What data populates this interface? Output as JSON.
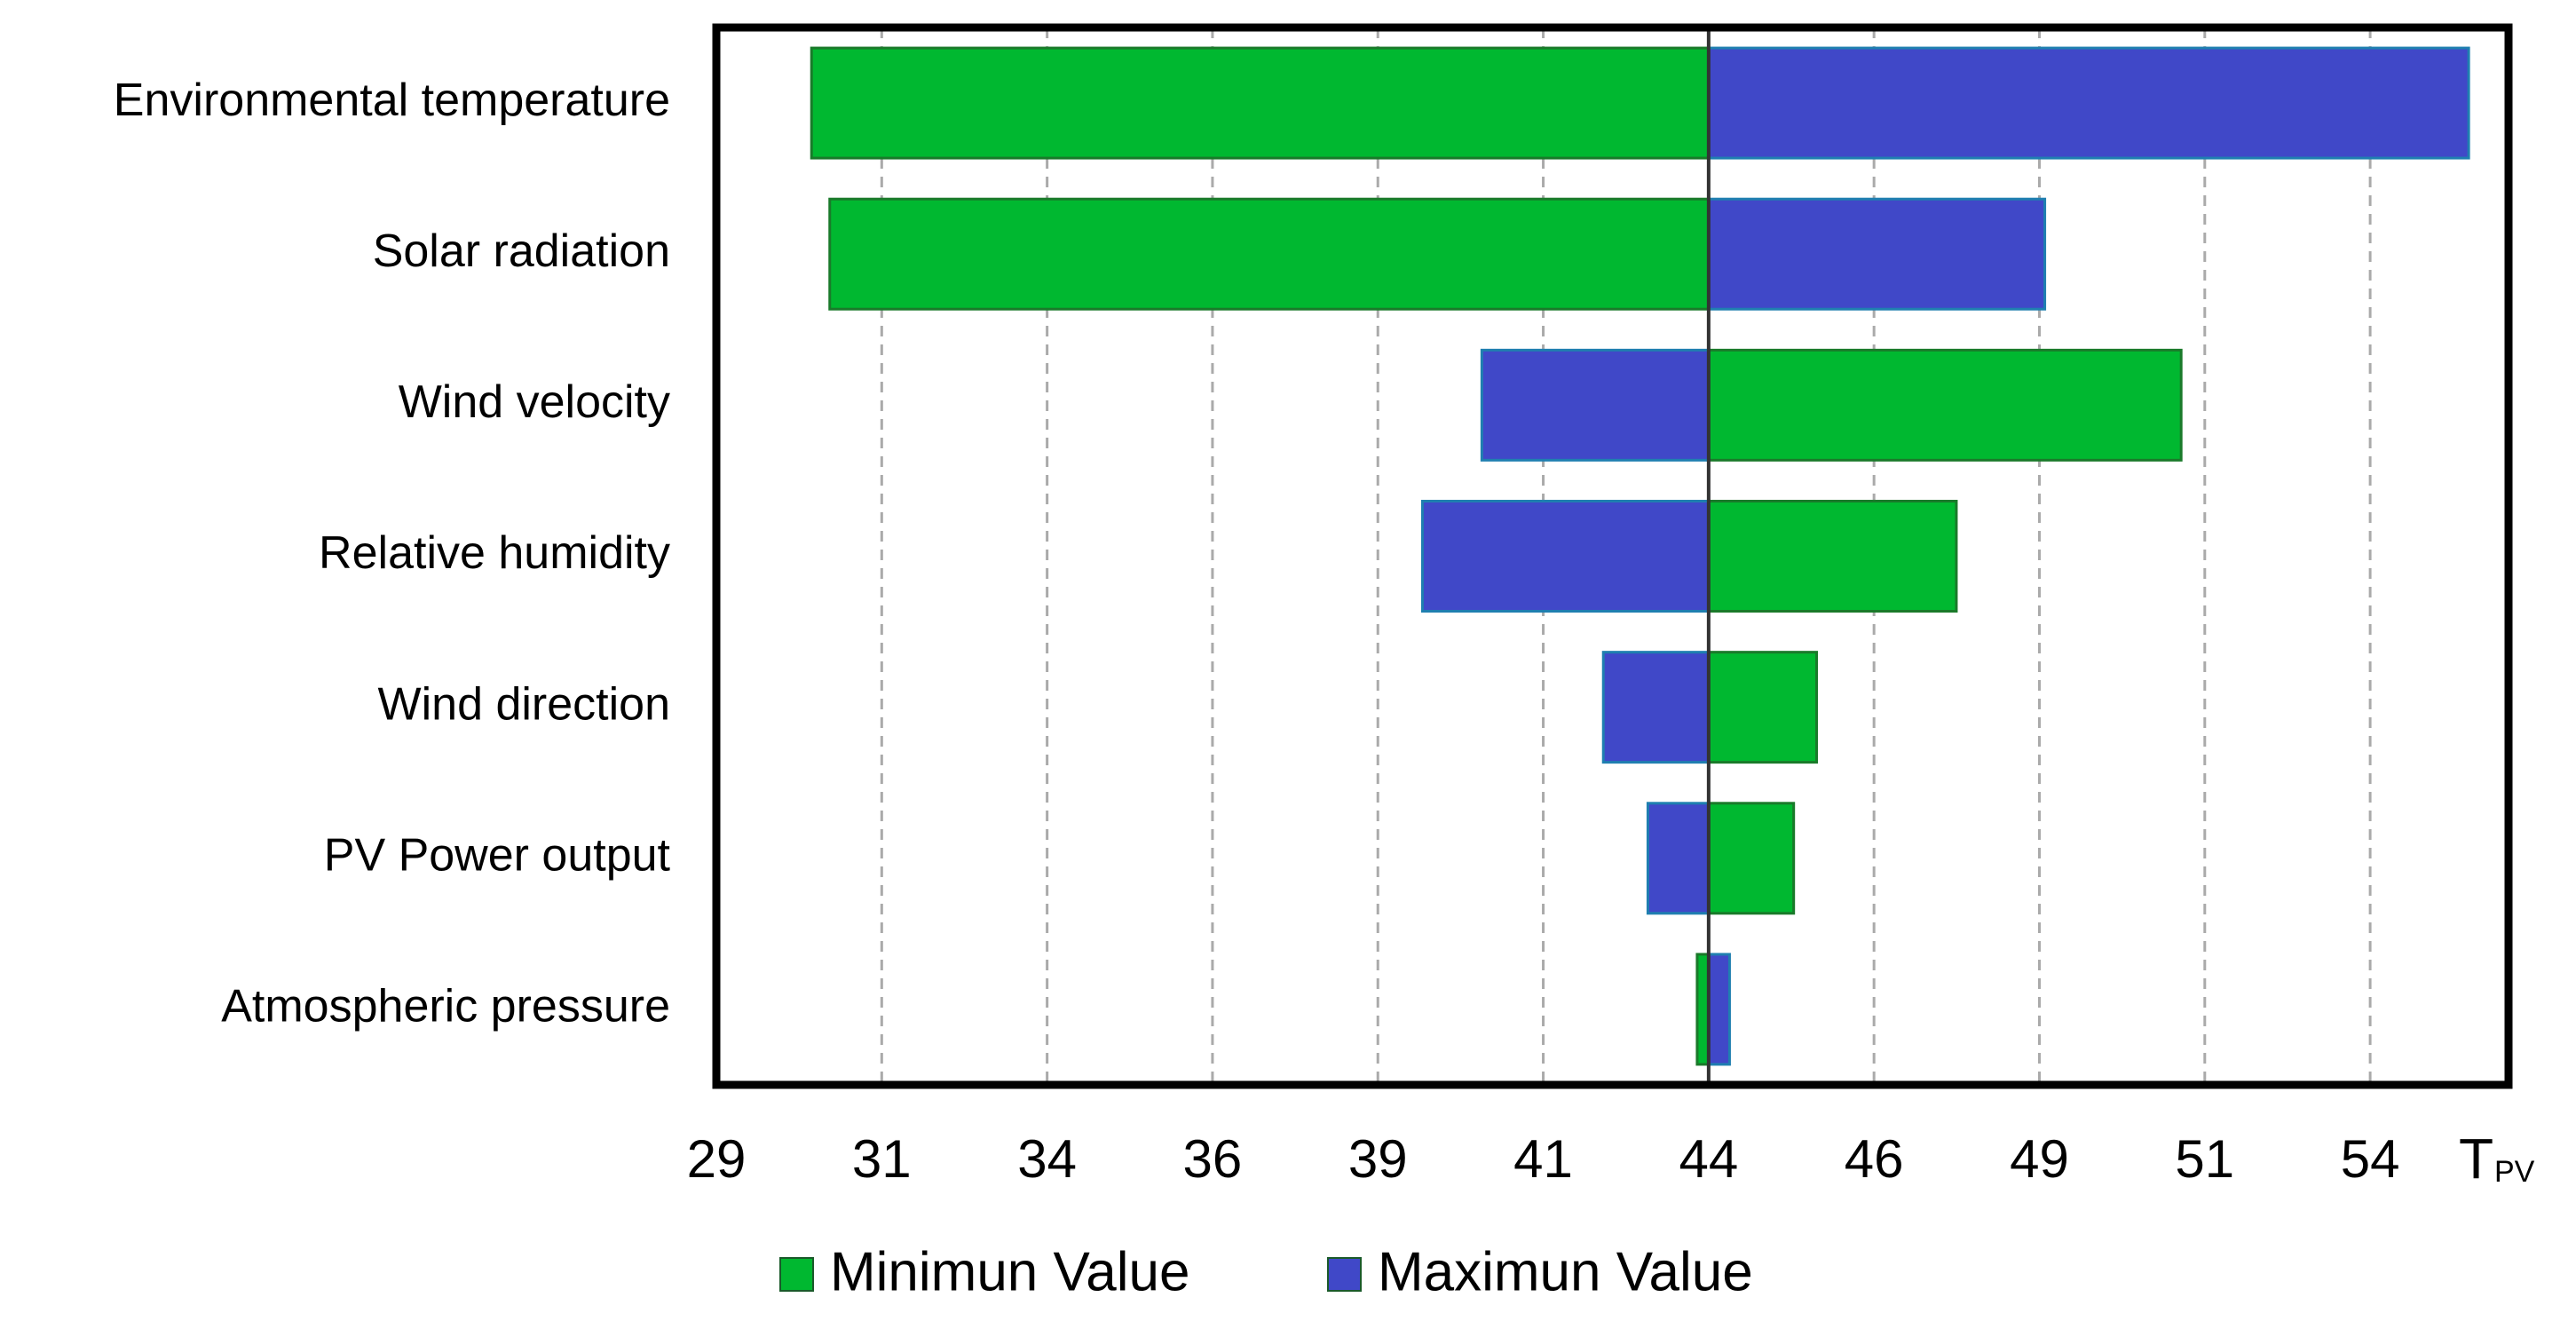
{
  "chart_data": {
    "type": "tornado",
    "categories": [
      "Environmental temperature",
      "Solar radiation",
      "Wind velocity",
      "Relative humidity",
      "Wind direction",
      "PV Power output",
      "Atmospheric pressure"
    ],
    "base": 43.7,
    "series": [
      {
        "name": "Minimun Value",
        "color": "#00b830",
        "values": [
          30.41,
          30.68,
          50.7,
          47.37,
          45.3,
          44.96,
          43.53
        ]
      },
      {
        "name": "Maximun Value",
        "color": "#4048c8",
        "values": [
          54.96,
          48.68,
          40.34,
          39.46,
          42.14,
          42.8,
          44.01
        ]
      }
    ],
    "xlim": [
      29,
      55.55
    ],
    "xticks": [
      29,
      {
        "value": 31.45,
        "label": "31"
      },
      {
        "value": 33.9,
        "label": "34"
      },
      {
        "value": 36.35,
        "label": "36"
      },
      {
        "value": 38.8,
        "label": "39"
      },
      {
        "value": 41.25,
        "label": "41"
      },
      {
        "value": 43.7,
        "label": "44"
      },
      {
        "value": 46.15,
        "label": "46"
      },
      {
        "value": 48.6,
        "label": "49"
      },
      {
        "value": 51.05,
        "label": "51"
      },
      {
        "value": 53.5,
        "label": "54"
      }
    ],
    "x_label": {
      "main": "T",
      "sub": "PV"
    },
    "grid": true,
    "legend": "bottom"
  }
}
